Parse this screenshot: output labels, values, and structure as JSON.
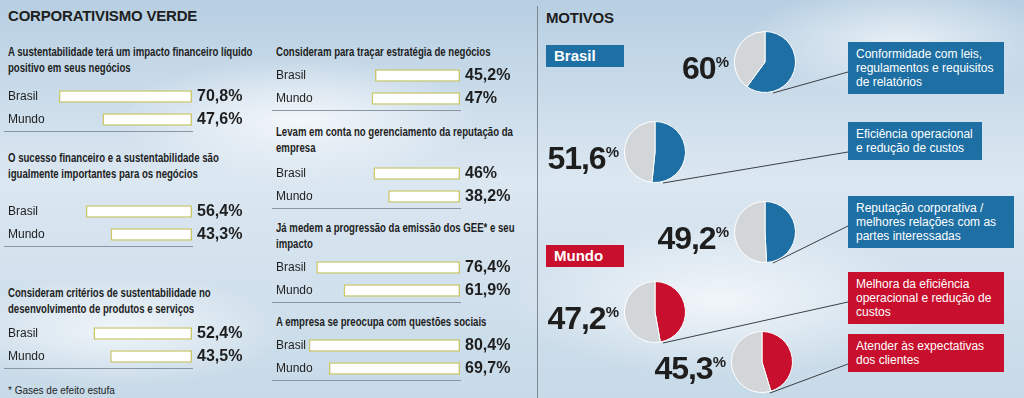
{
  "title": "CORPORATIVISMO VERDE",
  "footnote": "* Gases de efeito estufa",
  "chart_data": [
    {
      "type": "bar",
      "orientation": "horizontal",
      "title": "A sustentabilidade terá um impacto financeiro líquido positivo em seus negócios",
      "categories": [
        "Brasil",
        "Mundo"
      ],
      "values": [
        70.8,
        47.6
      ],
      "value_labels": [
        "70,8%",
        "47,6%"
      ],
      "data_labels": true,
      "color": "#ffffff",
      "xlim": [
        0,
        100
      ],
      "tick_labels": "y"
    },
    {
      "type": "bar",
      "orientation": "horizontal",
      "title": "O sucesso financeiro e a sustentabilidade são igualmente importantes para os negócios",
      "categories": [
        "Brasil",
        "Mundo"
      ],
      "values": [
        56.4,
        43.3
      ],
      "value_labels": [
        "56,4%",
        "43,3%"
      ],
      "data_labels": true,
      "color": "#ffffff",
      "xlim": [
        0,
        100
      ],
      "tick_labels": "y"
    },
    {
      "type": "bar",
      "orientation": "horizontal",
      "title": "Consideram critérios de sustentabilidade no desenvolvimento de produtos e serviços",
      "categories": [
        "Brasil",
        "Mundo"
      ],
      "values": [
        52.4,
        43.5
      ],
      "value_labels": [
        "52,4%",
        "43,5%"
      ],
      "data_labels": true,
      "color": "#ffffff",
      "xlim": [
        0,
        100
      ],
      "tick_labels": "y"
    },
    {
      "type": "bar",
      "orientation": "horizontal",
      "title": "Consideram para traçar estratégia de negócios",
      "categories": [
        "Brasil",
        "Mundo"
      ],
      "values": [
        45.2,
        47
      ],
      "value_labels": [
        "45,2%",
        "47%"
      ],
      "data_labels": true,
      "color": "#ffffff",
      "xlim": [
        0,
        100
      ],
      "tick_labels": "y"
    },
    {
      "type": "bar",
      "orientation": "horizontal",
      "title": "Levam em conta no gerenciamento da reputação da empresa",
      "categories": [
        "Brasil",
        "Mundo"
      ],
      "values": [
        46,
        38.2
      ],
      "value_labels": [
        "46%",
        "38,2%"
      ],
      "data_labels": true,
      "color": "#ffffff",
      "xlim": [
        0,
        100
      ],
      "tick_labels": "y"
    },
    {
      "type": "bar",
      "orientation": "horizontal",
      "title": "Já medem a progressão da emissão dos GEE* e seu impacto",
      "categories": [
        "Brasil",
        "Mundo"
      ],
      "values": [
        76.4,
        61.9
      ],
      "value_labels": [
        "76,4%",
        "61,9%"
      ],
      "data_labels": true,
      "color": "#ffffff",
      "xlim": [
        0,
        100
      ],
      "tick_labels": "y"
    },
    {
      "type": "bar",
      "orientation": "horizontal",
      "title": "A empresa se preocupa com questões sociais",
      "categories": [
        "Brasil",
        "Mundo"
      ],
      "values": [
        80.4,
        69.7
      ],
      "value_labels": [
        "80,4%",
        "69,7%"
      ],
      "data_labels": true,
      "color": "#ffffff",
      "xlim": [
        0,
        100
      ],
      "tick_labels": "y"
    }
  ],
  "motivos": {
    "title": "MOTIVOS",
    "groups": [
      {
        "name": "Brasil",
        "color": "#1d6fa4",
        "chart_data": [
          {
            "type": "pie",
            "categories": [
              "Conformidade com leis, regulamentos e requisitos de relatórios",
              null
            ],
            "values": [
              60,
              40
            ],
            "value_labels": [
              "60%",
              null
            ],
            "data_labels": true,
            "colors": [
              "#1d6fa4",
              "#d3d6d9"
            ]
          },
          {
            "type": "pie",
            "categories": [
              "Eficiência operacional e redução de custos",
              null
            ],
            "values": [
              51.6,
              48.4
            ],
            "value_labels": [
              "51,6%",
              null
            ],
            "data_labels": true,
            "colors": [
              "#1d6fa4",
              "#d3d6d9"
            ]
          },
          {
            "type": "pie",
            "categories": [
              "Reputação corporativa / melhores relações com as partes interessadas",
              null
            ],
            "values": [
              49.2,
              50.8
            ],
            "value_labels": [
              "49,2%",
              null
            ],
            "data_labels": true,
            "colors": [
              "#1d6fa4",
              "#d3d6d9"
            ]
          }
        ]
      },
      {
        "name": "Mundo",
        "color": "#c8102e",
        "chart_data": [
          {
            "type": "pie",
            "categories": [
              "Melhora da eficiência operacional e redução de custos",
              null
            ],
            "values": [
              47.2,
              52.8
            ],
            "value_labels": [
              "47,2%",
              null
            ],
            "data_labels": true,
            "colors": [
              "#c8102e",
              "#d3d6d9"
            ]
          },
          {
            "type": "pie",
            "categories": [
              "Atender às expectativas dos clientes",
              null
            ],
            "values": [
              45.3,
              54.7
            ],
            "value_labels": [
              "45,3%",
              null
            ],
            "data_labels": true,
            "colors": [
              "#c8102e",
              "#d3d6d9"
            ]
          }
        ]
      }
    ]
  }
}
